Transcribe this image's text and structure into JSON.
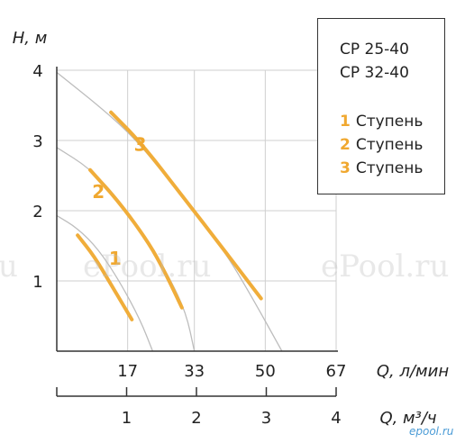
{
  "chart_data": {
    "type": "line",
    "y_axis": {
      "label": "H, м",
      "ticks": [
        "1",
        "2",
        "3",
        "4"
      ],
      "range": [
        0,
        4
      ]
    },
    "x_axis_primary": {
      "label": "Q, л/мин",
      "ticks": [
        "17",
        "33",
        "50",
        "67"
      ],
      "range": [
        0,
        67
      ]
    },
    "x_axis_secondary": {
      "label": "Q, м³/ч",
      "ticks": [
        "1",
        "2",
        "3",
        "4"
      ],
      "range": [
        0,
        4
      ]
    },
    "grid": true,
    "series": [
      {
        "name": "1 Ступень",
        "full_curve": [
          [
            0,
            1.93
          ],
          [
            5,
            1.75
          ],
          [
            10,
            1.45
          ],
          [
            15,
            1.0
          ],
          [
            20,
            0.45
          ],
          [
            23,
            0.0
          ]
        ],
        "operating_range": [
          [
            5,
            1.65
          ],
          [
            9,
            1.35
          ],
          [
            13,
            0.95
          ],
          [
            18,
            0.45
          ]
        ]
      },
      {
        "name": "2 Ступень",
        "full_curve": [
          [
            0,
            2.9
          ],
          [
            8,
            2.6
          ],
          [
            15,
            2.15
          ],
          [
            22,
            1.55
          ],
          [
            27,
            1.05
          ],
          [
            31,
            0.55
          ],
          [
            33,
            0.0
          ]
        ],
        "operating_range": [
          [
            8,
            2.58
          ],
          [
            15,
            2.12
          ],
          [
            22,
            1.55
          ],
          [
            26,
            1.12
          ],
          [
            30,
            0.62
          ]
        ]
      },
      {
        "name": "3 Ступень",
        "full_curve": [
          [
            0,
            3.97
          ],
          [
            12,
            3.4
          ],
          [
            20,
            2.95
          ],
          [
            30,
            2.2
          ],
          [
            40,
            1.45
          ],
          [
            47,
            0.75
          ],
          [
            54,
            0.0
          ]
        ],
        "operating_range": [
          [
            13,
            3.4
          ],
          [
            20,
            2.98
          ],
          [
            30,
            2.22
          ],
          [
            40,
            1.45
          ],
          [
            49,
            0.75
          ]
        ]
      }
    ],
    "annotations": [
      {
        "text": "1",
        "at": [
          14,
          1.23
        ]
      },
      {
        "text": "2",
        "at": [
          10,
          2.18
        ]
      },
      {
        "text": "3",
        "at": [
          20,
          2.85
        ]
      }
    ]
  },
  "legend": {
    "models": [
      "CP 25-40",
      "CP 32-40"
    ],
    "stages": [
      {
        "num": "1",
        "label": "Ступень"
      },
      {
        "num": "2",
        "label": "Ступень"
      },
      {
        "num": "3",
        "label": "Ступень"
      }
    ]
  },
  "watermarks": [
    "u",
    "ePool.ru",
    "ePool.ru",
    "epool.ru"
  ],
  "colors": {
    "operating": "#f0ad3a",
    "curve": "#bdbdbd",
    "axis": "#333333",
    "grid": "#cfcfcf",
    "label_orange": "#f0a830"
  }
}
